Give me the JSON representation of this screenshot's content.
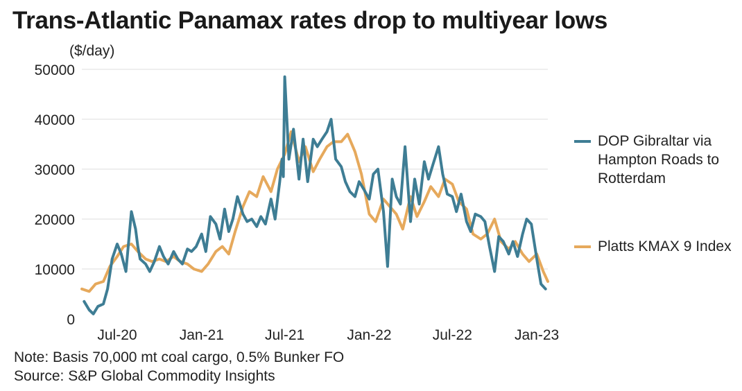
{
  "title": "Trans-Atlantic Panamax rates drop to multiyear lows",
  "unit_label": "($/day)",
  "notes": [
    "Note: Basis 70,000 mt coal cargo, 0.5% Bunker FO",
    "Source: S&P Global Commodity Insights"
  ],
  "colors": {
    "series1": "#3e7d94",
    "series2": "#e6a95c",
    "grid": "#dddddd"
  },
  "chart_data": {
    "type": "line",
    "title": "Trans-Atlantic Panamax rates drop to multiyear lows",
    "ylabel": "($/day)",
    "ylim": [
      0,
      50000
    ],
    "yticks": [
      "50000",
      "40000",
      "30000",
      "20000",
      "10000",
      "0"
    ],
    "ytick_values": [
      50000,
      40000,
      30000,
      20000,
      10000,
      0
    ],
    "xlim": [
      "2020-04-15",
      "2023-01-25"
    ],
    "xticks": [
      "Jul-20",
      "Jan-21",
      "Jul-21",
      "Jan-22",
      "Jul-22",
      "Jan-23"
    ],
    "xtick_dates": [
      "2020-07-01",
      "2021-01-01",
      "2021-07-01",
      "2022-01-01",
      "2022-07-01",
      "2023-01-01"
    ],
    "grid": true,
    "legend_position": "right",
    "series": [
      {
        "name": "DOP Gibraltar via Hampton Roads to Rotterdam",
        "color": "#3e7d94",
        "x": [
          "2020-04-20",
          "2020-05-01",
          "2020-05-10",
          "2020-05-20",
          "2020-06-01",
          "2020-06-10",
          "2020-06-20",
          "2020-07-01",
          "2020-07-10",
          "2020-07-20",
          "2020-08-01",
          "2020-08-10",
          "2020-08-15",
          "2020-08-20",
          "2020-09-01",
          "2020-09-10",
          "2020-09-20",
          "2020-10-01",
          "2020-10-10",
          "2020-10-20",
          "2020-11-01",
          "2020-11-10",
          "2020-11-20",
          "2020-12-01",
          "2020-12-10",
          "2020-12-20",
          "2021-01-01",
          "2021-01-10",
          "2021-01-20",
          "2021-02-01",
          "2021-02-10",
          "2021-02-20",
          "2021-03-01",
          "2021-03-10",
          "2021-03-20",
          "2021-04-01",
          "2021-04-10",
          "2021-04-20",
          "2021-05-01",
          "2021-05-10",
          "2021-05-20",
          "2021-06-01",
          "2021-06-10",
          "2021-06-20",
          "2021-06-25",
          "2021-06-28",
          "2021-07-01",
          "2021-07-05",
          "2021-07-10",
          "2021-07-20",
          "2021-08-01",
          "2021-08-10",
          "2021-08-20",
          "2021-09-01",
          "2021-09-10",
          "2021-09-20",
          "2021-10-01",
          "2021-10-10",
          "2021-10-20",
          "2021-11-01",
          "2021-11-10",
          "2021-11-20",
          "2021-12-01",
          "2021-12-10",
          "2021-12-20",
          "2022-01-01",
          "2022-01-10",
          "2022-01-20",
          "2022-02-01",
          "2022-02-10",
          "2022-02-20",
          "2022-03-01",
          "2022-03-10",
          "2022-03-20",
          "2022-04-01",
          "2022-04-10",
          "2022-04-20",
          "2022-05-01",
          "2022-05-10",
          "2022-05-20",
          "2022-06-01",
          "2022-06-10",
          "2022-06-20",
          "2022-07-01",
          "2022-07-10",
          "2022-07-20",
          "2022-08-01",
          "2022-08-10",
          "2022-08-20",
          "2022-09-01",
          "2022-09-10",
          "2022-09-20",
          "2022-10-01",
          "2022-10-10",
          "2022-10-20",
          "2022-11-01",
          "2022-11-10",
          "2022-11-20",
          "2022-12-01",
          "2022-12-10",
          "2022-12-20",
          "2023-01-01",
          "2023-01-10",
          "2023-01-20"
        ],
        "y": [
          3500,
          1800,
          1000,
          2500,
          3000,
          6000,
          12000,
          15000,
          13000,
          9500,
          21500,
          18000,
          14500,
          12000,
          11000,
          9500,
          11500,
          14500,
          12500,
          11000,
          13500,
          12000,
          11000,
          14000,
          13500,
          14500,
          17000,
          13500,
          20500,
          19000,
          16000,
          22000,
          17500,
          20000,
          24500,
          21000,
          19500,
          20000,
          18500,
          20500,
          19000,
          24000,
          20000,
          27500,
          32000,
          28500,
          48500,
          41000,
          32000,
          38000,
          28000,
          36000,
          27500,
          36000,
          34500,
          36000,
          37500,
          40000,
          32000,
          30500,
          27500,
          25500,
          24500,
          27500,
          26000,
          24000,
          29000,
          30000,
          21500,
          10500,
          28000,
          24500,
          23000,
          34500,
          19500,
          28000,
          23000,
          31500,
          28000,
          31000,
          34500,
          29000,
          25000,
          24500,
          21500,
          25000,
          19500,
          17500,
          21000,
          20500,
          19500,
          14500,
          9500,
          16500,
          15500,
          13000,
          15500,
          12500,
          17000,
          20000,
          19000,
          12000,
          7000,
          6000
        ]
      },
      {
        "name": "Platts KMAX 9 Index",
        "color": "#e6a95c",
        "x": [
          "2020-04-15",
          "2020-05-01",
          "2020-05-15",
          "2020-06-01",
          "2020-06-15",
          "2020-07-01",
          "2020-07-15",
          "2020-08-01",
          "2020-08-15",
          "2020-09-01",
          "2020-09-15",
          "2020-10-01",
          "2020-10-15",
          "2020-11-01",
          "2020-11-15",
          "2020-12-01",
          "2020-12-15",
          "2021-01-01",
          "2021-01-15",
          "2021-02-01",
          "2021-02-15",
          "2021-03-01",
          "2021-03-15",
          "2021-04-01",
          "2021-04-15",
          "2021-05-01",
          "2021-05-15",
          "2021-06-01",
          "2021-06-15",
          "2021-07-01",
          "2021-07-15",
          "2021-08-01",
          "2021-08-15",
          "2021-09-01",
          "2021-09-15",
          "2021-10-01",
          "2021-10-15",
          "2021-11-01",
          "2021-11-15",
          "2021-12-01",
          "2021-12-15",
          "2022-01-01",
          "2022-01-15",
          "2022-02-01",
          "2022-02-15",
          "2022-03-01",
          "2022-03-15",
          "2022-04-01",
          "2022-04-15",
          "2022-05-01",
          "2022-05-15",
          "2022-06-01",
          "2022-06-15",
          "2022-07-01",
          "2022-07-15",
          "2022-08-01",
          "2022-08-15",
          "2022-09-01",
          "2022-09-15",
          "2022-10-01",
          "2022-10-15",
          "2022-11-01",
          "2022-11-15",
          "2022-12-01",
          "2022-12-15",
          "2023-01-01",
          "2023-01-15",
          "2023-01-25"
        ],
        "y": [
          6000,
          5500,
          7000,
          7500,
          10500,
          12500,
          14500,
          15000,
          13500,
          12000,
          11500,
          12000,
          11500,
          12500,
          11500,
          11000,
          10000,
          9500,
          11000,
          13500,
          14500,
          13000,
          17500,
          22500,
          25500,
          24500,
          28500,
          25500,
          30000,
          33000,
          37500,
          31500,
          34500,
          29500,
          32000,
          34500,
          35500,
          35500,
          37000,
          33500,
          29000,
          21000,
          19500,
          24000,
          22500,
          21000,
          18000,
          24500,
          20500,
          23500,
          26500,
          24500,
          28000,
          27000,
          23500,
          22000,
          17000,
          16000,
          17000,
          20000,
          15500,
          14000,
          15500,
          13000,
          11500,
          13000,
          9500,
          7500
        ]
      }
    ]
  }
}
